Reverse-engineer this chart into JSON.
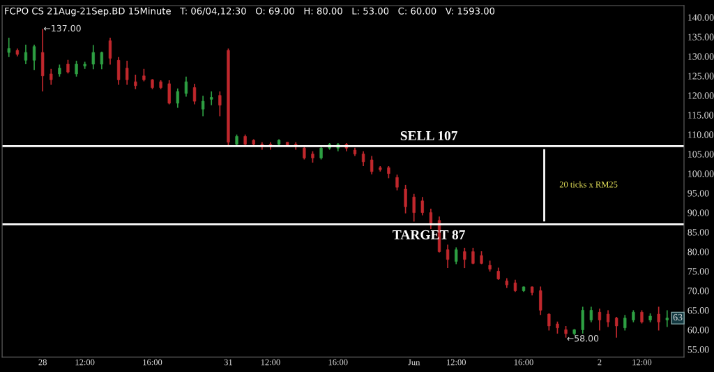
{
  "chart_data": {
    "type": "candlestick",
    "title": "FCPO CS 21Aug-21Sep.BD 15Minute   T: 06/04,12:30   O: 69.00   H: 80.00   L: 53.00   C: 60.00   V: 1593.00",
    "categories": [
      null,
      null,
      null,
      null,
      "28",
      null,
      null,
      null,
      null,
      "12:00",
      null,
      null,
      null,
      null,
      null,
      null,
      null,
      "16:00",
      null,
      null,
      null,
      null,
      null,
      null,
      null,
      null,
      "31",
      null,
      null,
      null,
      null,
      "12:00",
      null,
      null,
      null,
      null,
      null,
      null,
      null,
      "16:00",
      null,
      null,
      null,
      null,
      null,
      null,
      null,
      null,
      "Jun",
      null,
      null,
      null,
      null,
      "12:00",
      null,
      null,
      null,
      null,
      null,
      null,
      null,
      "16:00",
      null,
      null,
      null,
      null,
      null,
      null,
      null,
      null,
      "2",
      null,
      null,
      null,
      null,
      "12:00",
      null,
      null,
      null
    ],
    "ohlc": [
      [
        131,
        134.8,
        129.8,
        132
      ],
      [
        131.5,
        132,
        130,
        130.5
      ],
      [
        129,
        133,
        128,
        131
      ],
      [
        129,
        133,
        126.5,
        132.5
      ],
      [
        131,
        137,
        121,
        125
      ],
      [
        125.5,
        126.8,
        122.7,
        124
      ],
      [
        125.5,
        127.9,
        124.8,
        127
      ],
      [
        128,
        129.1,
        125.6,
        126
      ],
      [
        125.5,
        128.9,
        124.8,
        128
      ],
      [
        127.5,
        128.6,
        126.8,
        128
      ],
      [
        128,
        132.9,
        126.7,
        131
      ],
      [
        128,
        131.2,
        126.7,
        131
      ],
      [
        134,
        134.8,
        127.9,
        129.5
      ],
      [
        129,
        129.8,
        122.7,
        124
      ],
      [
        127,
        128.9,
        122.7,
        124
      ],
      [
        123.5,
        125.3,
        121.6,
        122.5
      ],
      [
        125,
        126.8,
        123.6,
        124
      ],
      [
        124,
        124.2,
        121.6,
        122
      ],
      [
        123.5,
        123.9,
        121.6,
        122
      ],
      [
        123,
        123.9,
        117.7,
        118
      ],
      [
        118,
        121.8,
        116.8,
        121
      ],
      [
        120.5,
        124.8,
        119.7,
        123.5
      ],
      [
        122,
        123,
        117.7,
        118.5
      ],
      [
        116.5,
        119.9,
        114.7,
        118.5
      ],
      [
        119,
        121,
        117.5,
        119.5
      ],
      [
        120,
        121,
        114.7,
        117.5
      ],
      [
        131.5,
        132,
        107.1,
        108
      ],
      [
        107.5,
        110,
        107.1,
        109.5
      ],
      [
        109.5,
        110,
        107,
        107.5
      ],
      [
        108.5,
        108.8,
        107.1,
        107.5
      ],
      [
        107.5,
        108,
        106.1,
        107
      ],
      [
        107.5,
        108,
        106.1,
        107
      ],
      [
        107.5,
        108.8,
        107.1,
        108.5
      ],
      [
        108,
        108,
        107,
        107.2
      ],
      [
        107.5,
        108,
        106.1,
        107
      ],
      [
        106.5,
        106.8,
        103.6,
        104
      ],
      [
        105,
        105.7,
        102.8,
        104
      ],
      [
        104,
        106.8,
        103.6,
        106.5
      ],
      [
        106.5,
        107.8,
        106.1,
        107.5
      ],
      [
        106.5,
        107.8,
        105.7,
        107.5
      ],
      [
        107.5,
        107.8,
        105.7,
        106.5
      ],
      [
        106,
        106.6,
        104.5,
        105
      ],
      [
        105,
        105.7,
        101.9,
        103
      ],
      [
        103.5,
        104.5,
        99.8,
        100.5
      ],
      [
        101.5,
        101.9,
        100.5,
        101
      ],
      [
        101.5,
        101.9,
        98.8,
        100
      ],
      [
        99,
        99.7,
        95.7,
        96.5
      ],
      [
        96,
        97.1,
        89.8,
        91.5
      ],
      [
        94,
        94.8,
        87.7,
        90
      ],
      [
        93,
        94,
        89.3,
        90
      ],
      [
        90,
        91,
        85.8,
        87
      ],
      [
        88,
        89,
        79.8,
        80
      ],
      [
        80.5,
        81.8,
        75.8,
        78
      ],
      [
        77.5,
        81.1,
        76.8,
        80.5
      ],
      [
        80,
        81,
        75.8,
        78
      ],
      [
        80,
        81,
        76.8,
        77
      ],
      [
        79,
        80.1,
        76.8,
        77
      ],
      [
        76.5,
        77.7,
        74.9,
        75.5
      ],
      [
        75,
        75.9,
        72.8,
        73
      ],
      [
        72.5,
        73.2,
        70.7,
        71.5
      ],
      [
        72,
        72.8,
        69.7,
        70
      ],
      [
        70,
        71.1,
        69.7,
        71
      ],
      [
        71,
        71.1,
        68.8,
        69.5
      ],
      [
        70,
        71.1,
        63.8,
        65
      ],
      [
        64,
        64.2,
        59.8,
        61
      ],
      [
        61.5,
        62.1,
        59,
        60.5
      ],
      [
        60,
        61,
        58,
        59
      ],
      [
        59,
        60.2,
        58.6,
        60
      ],
      [
        60,
        65.9,
        59,
        65
      ],
      [
        62.5,
        65.9,
        61.9,
        65
      ],
      [
        64.5,
        65.4,
        59.8,
        62.5
      ],
      [
        64,
        65,
        60.7,
        62
      ],
      [
        63,
        63.3,
        58,
        61
      ],
      [
        60.5,
        63.8,
        59.8,
        63
      ],
      [
        62.5,
        65,
        61.9,
        64.5
      ],
      [
        64.5,
        65,
        61.6,
        62
      ],
      [
        62.5,
        64.2,
        61.9,
        63.5
      ],
      [
        64,
        65.9,
        59.8,
        62
      ],
      [
        62.5,
        65,
        60.7,
        63
      ]
    ],
    "colors": [
      "#2ea043",
      "#c0282d",
      "#2ea043",
      "#2ea043",
      "#c0282d",
      "#c0282d",
      "#2ea043",
      "#c0282d",
      "#2ea043",
      "#2ea043",
      "#2ea043",
      "#2ea043",
      "#c0282d",
      "#c0282d",
      "#c0282d",
      "#c0282d",
      "#c0282d",
      "#c0282d",
      "#c0282d",
      "#c0282d",
      "#2ea043",
      "#2ea043",
      "#c0282d",
      "#2ea043",
      "#2ea043",
      "#c0282d",
      "#c0282d",
      "#2ea043",
      "#c0282d",
      "#c0282d",
      "#c0282d",
      "#c0282d",
      "#2ea043",
      "#c0282d",
      "#c0282d",
      "#c0282d",
      "#c0282d",
      "#2ea043",
      "#2ea043",
      "#2ea043",
      "#c0282d",
      "#c0282d",
      "#c0282d",
      "#c0282d",
      "#c0282d",
      "#c0282d",
      "#c0282d",
      "#c0282d",
      "#c0282d",
      "#c0282d",
      "#c0282d",
      "#c0282d",
      "#c0282d",
      "#2ea043",
      "#c0282d",
      "#c0282d",
      "#c0282d",
      "#c0282d",
      "#c0282d",
      "#c0282d",
      "#c0282d",
      "#2ea043",
      "#c0282d",
      "#c0282d",
      "#c0282d",
      "#c0282d",
      "#c0282d",
      "#2ea043",
      "#2ea043",
      "#2ea043",
      "#c0282d",
      "#c0282d",
      "#c0282d",
      "#2ea043",
      "#2ea043",
      "#c0282d",
      "#2ea043",
      "#c0282d",
      "#2ea043"
    ],
    "ylim": [
      53,
      143
    ],
    "yticks": [
      {
        "value": 55,
        "label": "55.00"
      },
      {
        "value": 60,
        "label": "60.00"
      },
      {
        "value": 65,
        "label": "65.00"
      },
      {
        "value": 70,
        "label": "70.00"
      },
      {
        "value": 75,
        "label": "75.00"
      },
      {
        "value": 80,
        "label": "80.00"
      },
      {
        "value": 85,
        "label": "85.00"
      },
      {
        "value": 90,
        "label": "90.00"
      },
      {
        "value": 95,
        "label": "95.00"
      },
      {
        "value": 100,
        "label": "100.00"
      },
      {
        "value": 105,
        "label": "105.00"
      },
      {
        "value": 110,
        "label": "110.00"
      },
      {
        "value": 115,
        "label": "115.00"
      },
      {
        "value": 120,
        "label": "120.00"
      },
      {
        "value": 125,
        "label": "125.00"
      },
      {
        "value": 130,
        "label": "130.00"
      },
      {
        "value": 135,
        "label": "135.00"
      },
      {
        "value": 140,
        "label": "140.00"
      }
    ],
    "ref_lines": [
      {
        "axis": "y",
        "value": 107,
        "label": "SELL 107",
        "color": "#ffffff"
      },
      {
        "axis": "y",
        "value": 87,
        "label": "TARGET 87",
        "color": "#ffffff"
      }
    ],
    "annotations": [
      "←137.00",
      "←58.00",
      "63",
      "20 ticks x RM25"
    ]
  }
}
